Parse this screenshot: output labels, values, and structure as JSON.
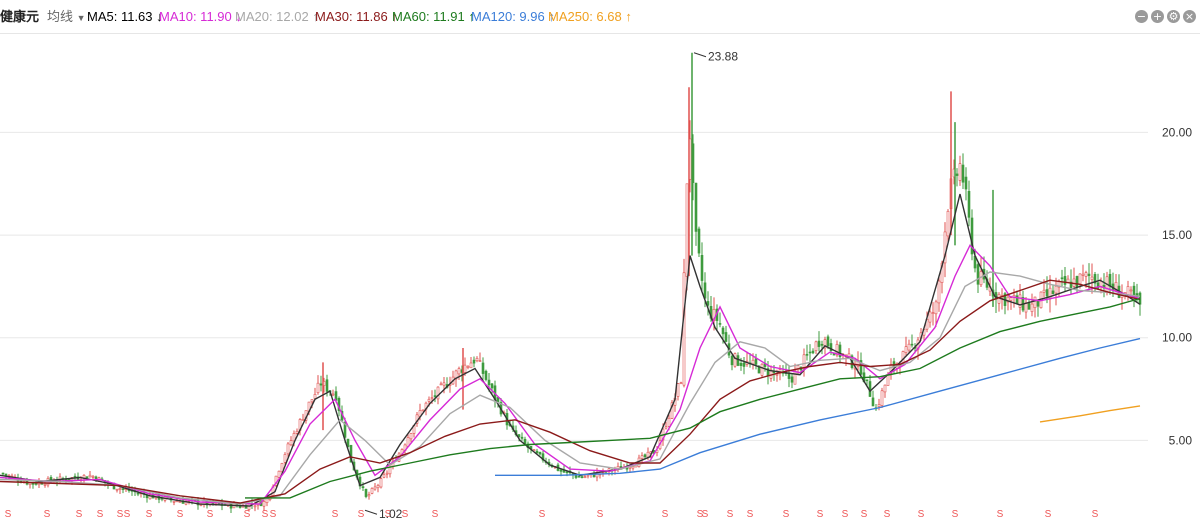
{
  "header": {
    "stock_name": "健康元",
    "indicator_label": "均线",
    "ma_items": [
      {
        "label": "MA5: 11.63",
        "arrow": "↓",
        "color": "#333333"
      },
      {
        "label": "MA10: 11.90",
        "arrow": "↓",
        "color": "#d62ad6"
      },
      {
        "label": "MA20: 12.02",
        "arrow": "↑",
        "color": "#a8a8a8"
      },
      {
        "label": "MA30: 11.86",
        "arrow": "↑",
        "color": "#8b1a1a"
      },
      {
        "label": "MA60: 11.91",
        "arrow": "↑",
        "color": "#1e7b1e"
      },
      {
        "label": "MA120: 9.96",
        "arrow": "↑",
        "color": "#3b7dd8"
      },
      {
        "label": "MA250: 6.68",
        "arrow": "↑",
        "color": "#f0a020"
      }
    ]
  },
  "chart_data": {
    "type": "candlestick",
    "y_ticks": [
      "20.00",
      "15.00",
      "10.00",
      "5.00"
    ],
    "ylim": [
      2,
      24.5
    ],
    "grid": true,
    "annotations": [
      {
        "text": "23.88",
        "x": 694,
        "y": 23.88
      },
      {
        "text": "1.02",
        "x": 365,
        "y": 1.6
      }
    ],
    "signal_label": "S",
    "signal_x": [
      8,
      47,
      79,
      100,
      120,
      127,
      149,
      180,
      210,
      247,
      265,
      273,
      335,
      361,
      388,
      405,
      435,
      542,
      600,
      665,
      700,
      705,
      730,
      750,
      786,
      820,
      845,
      864,
      887,
      921,
      955,
      1000,
      1048,
      1095
    ],
    "close_path": [
      [
        0,
        3.4
      ],
      [
        30,
        2.9
      ],
      [
        60,
        3.1
      ],
      [
        90,
        3.3
      ],
      [
        110,
        2.8
      ],
      [
        140,
        2.4
      ],
      [
        170,
        2.1
      ],
      [
        210,
        1.9
      ],
      [
        240,
        1.8
      ],
      [
        265,
        2.0
      ],
      [
        285,
        4.5
      ],
      [
        305,
        6.5
      ],
      [
        320,
        7.8
      ],
      [
        335,
        7.2
      ],
      [
        350,
        4.0
      ],
      [
        365,
        2.2
      ],
      [
        380,
        3.0
      ],
      [
        400,
        4.5
      ],
      [
        420,
        6.5
      ],
      [
        440,
        7.5
      ],
      [
        460,
        8.5
      ],
      [
        475,
        9.0
      ],
      [
        490,
        7.5
      ],
      [
        510,
        5.5
      ],
      [
        530,
        4.5
      ],
      [
        560,
        3.5
      ],
      [
        580,
        3.2
      ],
      [
        600,
        3.4
      ],
      [
        630,
        3.8
      ],
      [
        655,
        4.5
      ],
      [
        670,
        6.5
      ],
      [
        680,
        8.0
      ],
      [
        688,
        21.0
      ],
      [
        694,
        15.0
      ],
      [
        705,
        11.5
      ],
      [
        718,
        10.8
      ],
      [
        730,
        9.0
      ],
      [
        760,
        8.5
      ],
      [
        790,
        8.0
      ],
      [
        820,
        10.0
      ],
      [
        840,
        9.2
      ],
      [
        860,
        8.5
      ],
      [
        875,
        6.5
      ],
      [
        890,
        8.5
      ],
      [
        910,
        9.5
      ],
      [
        935,
        11.5
      ],
      [
        948,
        17.0
      ],
      [
        960,
        18.5
      ],
      [
        975,
        13.0
      ],
      [
        1000,
        12.0
      ],
      [
        1030,
        11.5
      ],
      [
        1060,
        12.5
      ],
      [
        1090,
        13.0
      ],
      [
        1110,
        12.5
      ],
      [
        1130,
        12.0
      ],
      [
        1140,
        11.5
      ]
    ],
    "ma_lines": [
      {
        "name": "MA5",
        "color": "#333333",
        "points": [
          [
            0,
            3.3
          ],
          [
            40,
            3.0
          ],
          [
            80,
            3.2
          ],
          [
            110,
            2.9
          ],
          [
            150,
            2.3
          ],
          [
            200,
            1.9
          ],
          [
            250,
            1.8
          ],
          [
            275,
            2.5
          ],
          [
            295,
            5.0
          ],
          [
            315,
            7.0
          ],
          [
            330,
            7.4
          ],
          [
            345,
            5.0
          ],
          [
            360,
            2.8
          ],
          [
            380,
            3.2
          ],
          [
            400,
            4.8
          ],
          [
            430,
            6.8
          ],
          [
            455,
            8.0
          ],
          [
            475,
            8.5
          ],
          [
            495,
            7.0
          ],
          [
            520,
            5.0
          ],
          [
            550,
            3.8
          ],
          [
            580,
            3.3
          ],
          [
            620,
            3.6
          ],
          [
            650,
            4.2
          ],
          [
            675,
            7.0
          ],
          [
            690,
            14.0
          ],
          [
            700,
            12.5
          ],
          [
            715,
            10.5
          ],
          [
            735,
            9.0
          ],
          [
            770,
            8.4
          ],
          [
            800,
            8.2
          ],
          [
            825,
            9.6
          ],
          [
            850,
            9.0
          ],
          [
            870,
            7.4
          ],
          [
            890,
            8.3
          ],
          [
            920,
            9.8
          ],
          [
            945,
            14.0
          ],
          [
            960,
            17.0
          ],
          [
            975,
            14.0
          ],
          [
            995,
            12.0
          ],
          [
            1020,
            11.6
          ],
          [
            1050,
            12.0
          ],
          [
            1080,
            12.5
          ],
          [
            1100,
            12.8
          ],
          [
            1125,
            12.1
          ],
          [
            1140,
            11.63
          ]
        ]
      },
      {
        "name": "MA10",
        "color": "#d62ad6",
        "points": [
          [
            0,
            3.2
          ],
          [
            50,
            3.0
          ],
          [
            100,
            3.1
          ],
          [
            150,
            2.4
          ],
          [
            200,
            2.0
          ],
          [
            260,
            1.9
          ],
          [
            285,
            3.5
          ],
          [
            310,
            5.8
          ],
          [
            335,
            7.0
          ],
          [
            355,
            5.0
          ],
          [
            375,
            3.3
          ],
          [
            400,
            4.2
          ],
          [
            430,
            6.0
          ],
          [
            460,
            7.5
          ],
          [
            480,
            8.0
          ],
          [
            505,
            6.8
          ],
          [
            535,
            4.8
          ],
          [
            570,
            3.6
          ],
          [
            610,
            3.5
          ],
          [
            650,
            4.0
          ],
          [
            680,
            6.5
          ],
          [
            700,
            9.5
          ],
          [
            720,
            11.5
          ],
          [
            740,
            9.5
          ],
          [
            770,
            8.6
          ],
          [
            800,
            8.3
          ],
          [
            830,
            9.3
          ],
          [
            855,
            9.0
          ],
          [
            880,
            8.0
          ],
          [
            905,
            8.7
          ],
          [
            935,
            10.5
          ],
          [
            955,
            13.0
          ],
          [
            970,
            14.5
          ],
          [
            990,
            13.5
          ],
          [
            1010,
            12.0
          ],
          [
            1040,
            11.8
          ],
          [
            1070,
            12.1
          ],
          [
            1100,
            12.5
          ],
          [
            1140,
            11.9
          ]
        ]
      },
      {
        "name": "MA20",
        "color": "#a8a8a8",
        "points": [
          [
            0,
            3.1
          ],
          [
            60,
            3.0
          ],
          [
            120,
            2.8
          ],
          [
            180,
            2.2
          ],
          [
            240,
            1.9
          ],
          [
            280,
            2.3
          ],
          [
            310,
            4.3
          ],
          [
            340,
            6.0
          ],
          [
            365,
            5.0
          ],
          [
            390,
            3.8
          ],
          [
            420,
            4.7
          ],
          [
            450,
            6.3
          ],
          [
            480,
            7.2
          ],
          [
            510,
            6.6
          ],
          [
            545,
            5.0
          ],
          [
            580,
            3.9
          ],
          [
            620,
            3.6
          ],
          [
            660,
            4.1
          ],
          [
            690,
            6.8
          ],
          [
            715,
            8.8
          ],
          [
            740,
            9.8
          ],
          [
            765,
            9.5
          ],
          [
            790,
            8.6
          ],
          [
            820,
            8.9
          ],
          [
            850,
            9.0
          ],
          [
            880,
            8.4
          ],
          [
            910,
            8.8
          ],
          [
            940,
            10.0
          ],
          [
            965,
            12.5
          ],
          [
            990,
            13.2
          ],
          [
            1020,
            13.0
          ],
          [
            1050,
            12.6
          ],
          [
            1080,
            12.3
          ],
          [
            1110,
            12.2
          ],
          [
            1140,
            12.02
          ]
        ]
      },
      {
        "name": "MA30",
        "color": "#8b1a1a",
        "points": [
          [
            0,
            3.0
          ],
          [
            60,
            2.9
          ],
          [
            120,
            2.8
          ],
          [
            180,
            2.3
          ],
          [
            240,
            1.95
          ],
          [
            285,
            2.4
          ],
          [
            320,
            3.6
          ],
          [
            350,
            4.2
          ],
          [
            380,
            3.9
          ],
          [
            410,
            4.4
          ],
          [
            445,
            5.2
          ],
          [
            480,
            5.8
          ],
          [
            515,
            6.0
          ],
          [
            550,
            5.4
          ],
          [
            590,
            4.5
          ],
          [
            630,
            3.9
          ],
          [
            660,
            3.9
          ],
          [
            690,
            5.3
          ],
          [
            720,
            7.0
          ],
          [
            750,
            7.9
          ],
          [
            780,
            8.3
          ],
          [
            810,
            8.6
          ],
          [
            840,
            8.8
          ],
          [
            870,
            8.6
          ],
          [
            900,
            8.7
          ],
          [
            930,
            9.4
          ],
          [
            960,
            10.8
          ],
          [
            990,
            11.8
          ],
          [
            1020,
            12.3
          ],
          [
            1050,
            12.8
          ],
          [
            1080,
            12.6
          ],
          [
            1110,
            12.2
          ],
          [
            1140,
            11.86
          ]
        ]
      },
      {
        "name": "MA60",
        "color": "#1e7b1e",
        "points": [
          [
            245,
            2.2
          ],
          [
            290,
            2.2
          ],
          [
            330,
            3.0
          ],
          [
            370,
            3.5
          ],
          [
            410,
            3.9
          ],
          [
            450,
            4.3
          ],
          [
            490,
            4.6
          ],
          [
            530,
            4.8
          ],
          [
            570,
            4.9
          ],
          [
            610,
            5.0
          ],
          [
            650,
            5.1
          ],
          [
            690,
            5.6
          ],
          [
            720,
            6.4
          ],
          [
            760,
            7.0
          ],
          [
            800,
            7.5
          ],
          [
            840,
            8.0
          ],
          [
            880,
            8.1
          ],
          [
            920,
            8.5
          ],
          [
            960,
            9.5
          ],
          [
            1000,
            10.3
          ],
          [
            1040,
            10.8
          ],
          [
            1080,
            11.2
          ],
          [
            1110,
            11.5
          ],
          [
            1140,
            11.91
          ]
        ]
      },
      {
        "name": "MA120",
        "color": "#3b7dd8",
        "points": [
          [
            495,
            3.3
          ],
          [
            560,
            3.3
          ],
          [
            620,
            3.4
          ],
          [
            660,
            3.6
          ],
          [
            700,
            4.4
          ],
          [
            760,
            5.3
          ],
          [
            820,
            6.0
          ],
          [
            880,
            6.6
          ],
          [
            940,
            7.4
          ],
          [
            1000,
            8.2
          ],
          [
            1060,
            9.0
          ],
          [
            1100,
            9.5
          ],
          [
            1140,
            9.96
          ]
        ]
      },
      {
        "name": "MA250",
        "color": "#f0a020",
        "points": [
          [
            1040,
            5.9
          ],
          [
            1080,
            6.2
          ],
          [
            1110,
            6.45
          ],
          [
            1140,
            6.68
          ]
        ]
      }
    ]
  }
}
